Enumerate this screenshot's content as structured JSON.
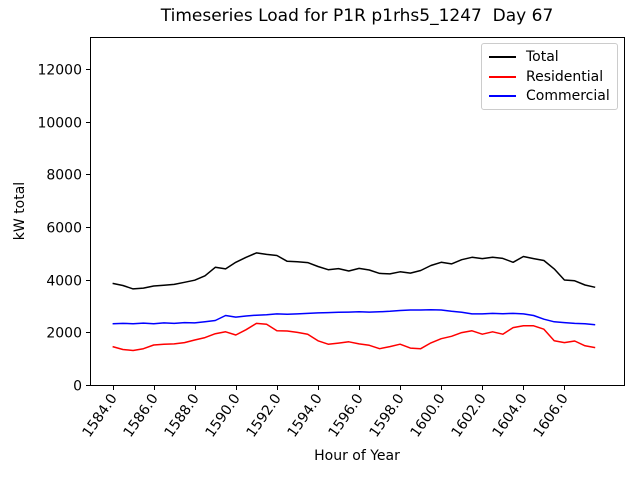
{
  "chart_data": {
    "type": "line",
    "title": "Timeseries Load for P1R p1rhs5_1247  Day 67",
    "xlabel": "Hour of Year",
    "ylabel": "kW total",
    "xlim": [
      1582.9,
      1608.9
    ],
    "ylim": [
      0,
      13220
    ],
    "xticks": [
      1584,
      1586,
      1588,
      1590,
      1592,
      1594,
      1596,
      1598,
      1600,
      1602,
      1604,
      1606
    ],
    "xtick_labels": [
      "1584.0",
      "1586.0",
      "1588.0",
      "1590.0",
      "1592.0",
      "1594.0",
      "1596.0",
      "1598.0",
      "1600.0",
      "1602.0",
      "1604.0",
      "1606.0"
    ],
    "yticks": [
      0,
      2000,
      4000,
      6000,
      8000,
      10000,
      12000
    ],
    "ytick_labels": [
      "0",
      "2000",
      "4000",
      "6000",
      "8000",
      "10000",
      "12000"
    ],
    "grid": false,
    "legend_position": "upper right",
    "background": "#ffffff",
    "x": [
      1584.0,
      1584.5,
      1585.0,
      1585.5,
      1586.0,
      1586.5,
      1587.0,
      1587.5,
      1588.0,
      1588.5,
      1589.0,
      1589.5,
      1590.0,
      1590.5,
      1591.0,
      1591.5,
      1592.0,
      1592.5,
      1593.0,
      1593.5,
      1594.0,
      1594.5,
      1595.0,
      1595.5,
      1596.0,
      1596.5,
      1597.0,
      1597.5,
      1598.0,
      1598.5,
      1599.0,
      1599.5,
      1600.0,
      1600.5,
      1601.0,
      1601.5,
      1602.0,
      1602.5,
      1603.0,
      1603.5,
      1604.0,
      1604.5,
      1605.0,
      1605.5,
      1606.0,
      1606.5,
      1607.0,
      1607.5
    ],
    "series": [
      {
        "name": "Total",
        "color": "#000000",
        "values": [
          3860,
          3780,
          3650,
          3680,
          3760,
          3790,
          3820,
          3900,
          3980,
          4150,
          4470,
          4410,
          4660,
          4850,
          5020,
          4960,
          4920,
          4700,
          4680,
          4650,
          4500,
          4380,
          4420,
          4330,
          4430,
          4370,
          4240,
          4220,
          4300,
          4250,
          4350,
          4540,
          4660,
          4600,
          4760,
          4850,
          4800,
          4850,
          4810,
          4660,
          4880,
          4800,
          4730,
          4410,
          3990,
          3960,
          3800,
          3710
        ]
      },
      {
        "name": "Residential",
        "color": "#ff0000",
        "values": [
          1460,
          1350,
          1310,
          1380,
          1520,
          1550,
          1560,
          1610,
          1710,
          1800,
          1950,
          2020,
          1900,
          2100,
          2340,
          2310,
          2060,
          2050,
          2000,
          1930,
          1680,
          1550,
          1590,
          1640,
          1560,
          1510,
          1380,
          1460,
          1550,
          1400,
          1380,
          1600,
          1760,
          1850,
          1990,
          2060,
          1930,
          2020,
          1930,
          2180,
          2250,
          2250,
          2120,
          1680,
          1610,
          1670,
          1490,
          1420
        ]
      },
      {
        "name": "Commercial",
        "color": "#0000ff",
        "values": [
          2330,
          2340,
          2330,
          2350,
          2330,
          2360,
          2340,
          2370,
          2360,
          2400,
          2450,
          2640,
          2580,
          2620,
          2650,
          2670,
          2700,
          2690,
          2700,
          2720,
          2740,
          2750,
          2760,
          2770,
          2780,
          2770,
          2780,
          2800,
          2830,
          2850,
          2850,
          2860,
          2850,
          2800,
          2760,
          2700,
          2700,
          2720,
          2710,
          2720,
          2700,
          2640,
          2500,
          2400,
          2370,
          2340,
          2330,
          2290
        ]
      }
    ]
  }
}
